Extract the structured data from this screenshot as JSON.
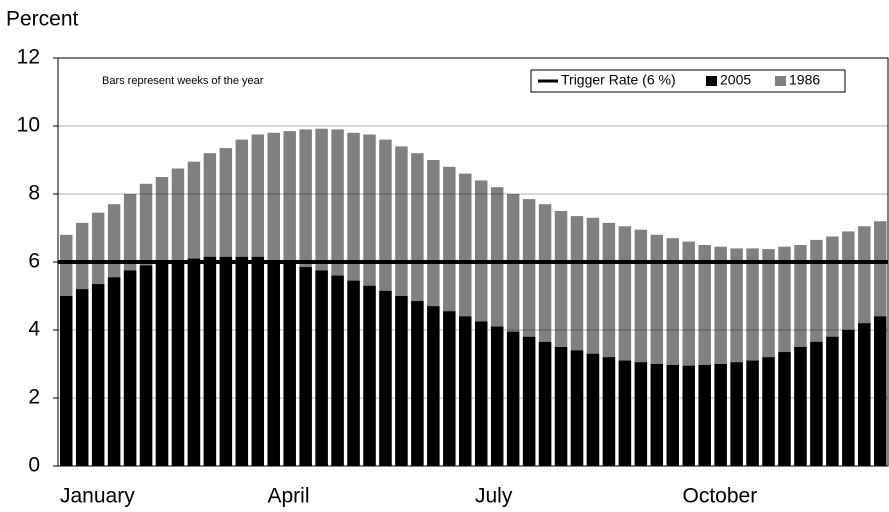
{
  "chart_data": {
    "type": "bar",
    "y_label": "Percent",
    "annotation": "Bars represent weeks of the year",
    "categories": [
      "January",
      null,
      null,
      null,
      null,
      null,
      null,
      null,
      null,
      null,
      null,
      null,
      null,
      "April",
      null,
      null,
      null,
      null,
      null,
      null,
      null,
      null,
      null,
      null,
      null,
      null,
      "July",
      null,
      null,
      null,
      null,
      null,
      null,
      null,
      null,
      null,
      null,
      null,
      null,
      "October",
      null,
      null,
      null,
      null,
      null,
      null,
      null,
      null,
      null,
      null,
      null,
      null
    ],
    "series": [
      {
        "name": "2005",
        "color": "#000000",
        "values": [
          5.0,
          5.2,
          5.35,
          5.55,
          5.75,
          5.9,
          6.0,
          6.05,
          6.1,
          6.15,
          6.15,
          6.15,
          6.15,
          6.05,
          6.0,
          5.85,
          5.75,
          5.6,
          5.45,
          5.3,
          5.15,
          5.0,
          4.85,
          4.7,
          4.55,
          4.4,
          4.25,
          4.1,
          3.95,
          3.8,
          3.65,
          3.5,
          3.4,
          3.3,
          3.2,
          3.1,
          3.05,
          3.0,
          2.97,
          2.95,
          2.97,
          3.0,
          3.05,
          3.1,
          3.2,
          3.35,
          3.5,
          3.65,
          3.8,
          4.0,
          4.2,
          4.4
        ]
      },
      {
        "name": "1986",
        "color": "#808080",
        "values": [
          6.8,
          7.15,
          7.45,
          7.7,
          8.0,
          8.3,
          8.5,
          8.75,
          8.95,
          9.2,
          9.35,
          9.6,
          9.75,
          9.8,
          9.85,
          9.9,
          9.92,
          9.9,
          9.8,
          9.75,
          9.6,
          9.4,
          9.2,
          9.0,
          8.8,
          8.6,
          8.4,
          8.2,
          8.0,
          7.85,
          7.7,
          7.5,
          7.35,
          7.3,
          7.15,
          7.05,
          6.95,
          6.8,
          6.7,
          6.6,
          6.5,
          6.45,
          6.4,
          6.4,
          6.38,
          6.45,
          6.5,
          6.65,
          6.75,
          6.9,
          7.05,
          7.2
        ]
      }
    ],
    "reference_line": {
      "name": "Trigger Rate (6 %)",
      "value": 6,
      "color": "#000000"
    },
    "ylim": [
      0,
      12
    ],
    "yticks": [
      0,
      2,
      4,
      6,
      8,
      10,
      12
    ],
    "grid": true,
    "legend": "top-right"
  }
}
